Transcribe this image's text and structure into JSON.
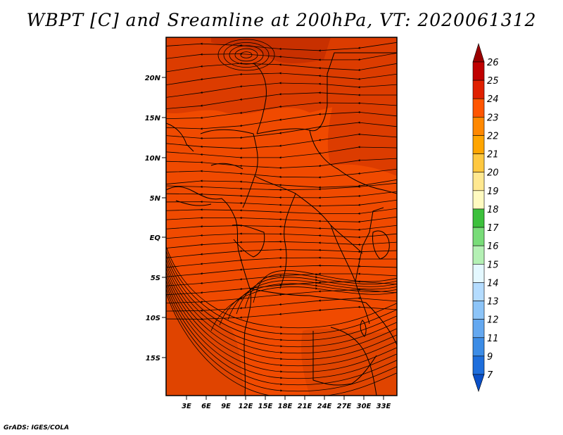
{
  "title": "WBPT [C] and Sreamline at 200hPa, VT: 2020061312",
  "credit": "GrADS: IGES/COLA",
  "lat_labels": [
    "20N",
    "15N",
    "10N",
    "5N",
    "EQ",
    "5S",
    "10S",
    "15S"
  ],
  "lon_labels": [
    "3E",
    "6E",
    "9E",
    "12E",
    "15E",
    "18E",
    "21E",
    "24E",
    "27E",
    "30E",
    "33E"
  ],
  "colorbar": {
    "labels": [
      "26",
      "25",
      "24",
      "23",
      "22",
      "21",
      "20",
      "19",
      "18",
      "17",
      "16",
      "15",
      "14",
      "13",
      "12",
      "11",
      "9",
      "7"
    ],
    "colors": [
      "#9a0000",
      "#c00000",
      "#e02000",
      "#ff5500",
      "#ff8800",
      "#ffa500",
      "#ffc840",
      "#ffe890",
      "#fffac0",
      "#3cc03c",
      "#78dc78",
      "#b4f0b4",
      "#e4f8ff",
      "#b4dcff",
      "#8cc4f8",
      "#64a8f0",
      "#3c8ce6",
      "#1e6edc",
      "#0a50c8"
    ]
  },
  "field_colors": {
    "main": "#f04a00",
    "warm": "#dc3c00",
    "hot": "#c83000"
  }
}
